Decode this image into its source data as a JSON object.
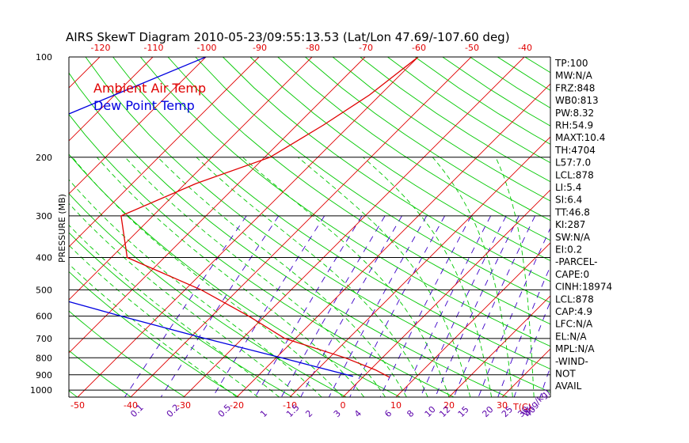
{
  "chart_data": {
    "type": "line",
    "title": "AIRS SkewT Diagram 2010-05-23/09:55:13.53 (Lat/Lon 47.69/-107.60 deg)",
    "ylabel": "PRESSURE (MB)",
    "xlabel": "T(C)",
    "mixing_ratio_label": "W(g/kg)",
    "pressure_ticks": [
      100,
      200,
      300,
      400,
      500,
      600,
      700,
      800,
      900,
      1000
    ],
    "temp_ticks_bottom": [
      -50,
      -40,
      -30,
      -20,
      -10,
      0,
      10,
      20,
      30
    ],
    "temp_ticks_top": [
      -120,
      -110,
      -100,
      -90,
      -80,
      -70,
      -60,
      -50,
      -40
    ],
    "mixing_ratio_ticks": [
      "0.1",
      "0.2",
      "0.5",
      "1",
      "1.5",
      "2",
      "3",
      "4",
      "6",
      "8",
      "10",
      "12",
      "15",
      "20",
      "25",
      "30",
      "40"
    ],
    "legend": [
      {
        "name": "Ambient Air Temp",
        "color": "#e00000"
      },
      {
        "name": "Dew Point Temp",
        "color": "#0000e0"
      }
    ],
    "series": [
      {
        "name": "Ambient Air Temp",
        "color": "#e00000",
        "points": [
          {
            "p": 100,
            "t": -50
          },
          {
            "p": 130,
            "t": -52
          },
          {
            "p": 160,
            "t": -55
          },
          {
            "p": 200,
            "t": -59
          },
          {
            "p": 240,
            "t": -68
          },
          {
            "p": 300,
            "t": -76
          },
          {
            "p": 400,
            "t": -67
          },
          {
            "p": 500,
            "t": -47
          },
          {
            "p": 600,
            "t": -33
          },
          {
            "p": 700,
            "t": -22
          },
          {
            "p": 800,
            "t": -7
          },
          {
            "p": 870,
            "t": 1
          },
          {
            "p": 915,
            "t": 5
          }
        ]
      },
      {
        "name": "Dew Point Temp",
        "color": "#0000e0",
        "points": [
          {
            "p": 100,
            "t": -90
          },
          {
            "p": 160,
            "t": -108
          },
          {
            "p": 200,
            "t": -112
          },
          {
            "p": 250,
            "t": -109
          },
          {
            "p": 300,
            "t": -103
          },
          {
            "p": 400,
            "t": -94
          },
          {
            "p": 500,
            "t": -80
          },
          {
            "p": 600,
            "t": -57
          },
          {
            "p": 700,
            "t": -37
          },
          {
            "p": 800,
            "t": -19
          },
          {
            "p": 910,
            "t": -2
          }
        ]
      }
    ],
    "indices": [
      "TP:100",
      "MW:N/A",
      "FRZ:848",
      "WB0:813",
      "PW:8.32",
      "RH:54.9",
      "MAXT:10.4",
      "TH:4704",
      "L57:7.0",
      "LCL:878",
      "LI:5.4",
      "SI:6.4",
      "TT:46.8",
      "KI:287",
      "SW:N/A",
      "EI:0.2",
      "-PARCEL-",
      "CAPE:0",
      "CINH:18974",
      "LCL:878",
      "CAP:4.9",
      "LFC:N/A",
      "EL:N/A",
      "MPL:N/A",
      "-WIND-",
      "NOT",
      "AVAIL"
    ],
    "grid": true,
    "colors": {
      "isotherm": "#e00000",
      "dry_adiabat": "#00c800",
      "moist_adiabat": "#00c800",
      "mixing_ratio": "#3c00c8",
      "axis_text": "#e00000",
      "mixing_text": "#5a00aa"
    }
  }
}
